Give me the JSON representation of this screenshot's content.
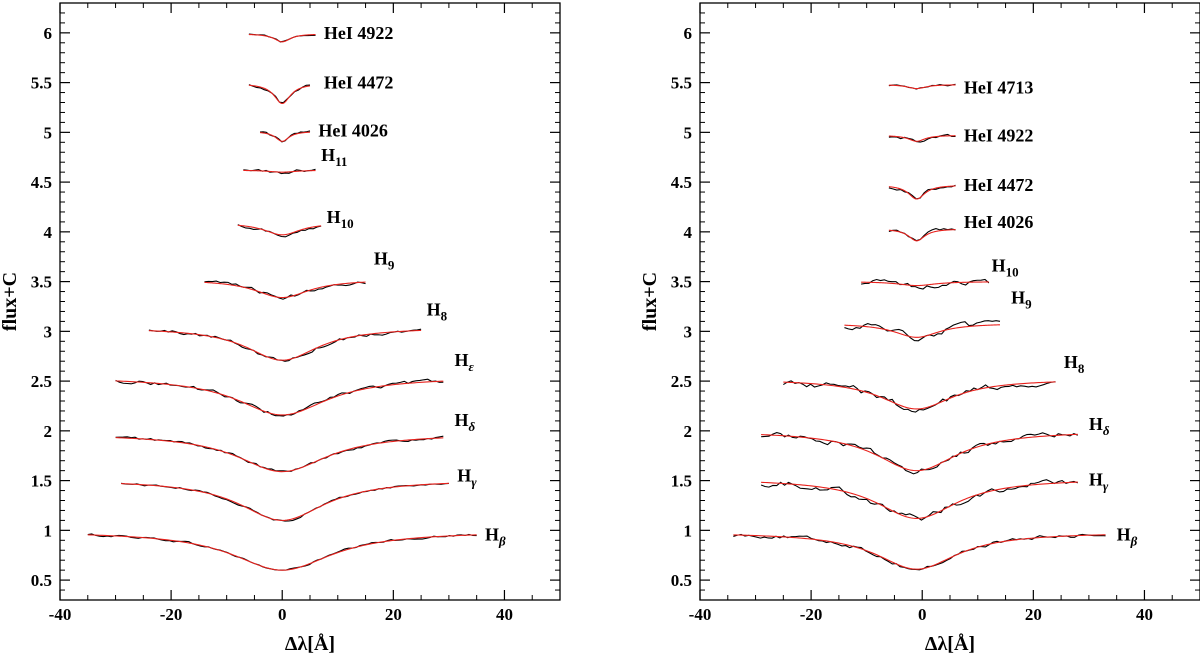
{
  "chart_data": [
    {
      "type": "line",
      "panel": "left",
      "xlabel": "Δλ[Å]",
      "ylabel": "flux+C",
      "xlim": [
        -40,
        50
      ],
      "ylim": [
        0.3,
        6.3
      ],
      "xticks": [
        "-40",
        "-20",
        "0",
        "20",
        "40"
      ],
      "yticks": [
        "0.5",
        "1",
        "1.5",
        "2",
        "2.5",
        "3",
        "3.5",
        "4",
        "4.5",
        "5",
        "5.5",
        "6"
      ],
      "grid": false,
      "series": [
        {
          "name": "Hβ",
          "label": {
            "main": "H",
            "sub": "β"
          },
          "xmin": -35,
          "xmax": 35,
          "cont": 0.99,
          "depth": 0.39,
          "width": 11.0,
          "center": 0.0,
          "noise": 0.012,
          "label_x": 36.5,
          "label_y": 0.96
        },
        {
          "name": "Hγ",
          "label": {
            "main": "H",
            "sub": "γ"
          },
          "xmin": -29,
          "xmax": 30,
          "cont": 1.51,
          "depth": 0.41,
          "width": 9.5,
          "center": 0.0,
          "noise": 0.012,
          "label_x": 31.5,
          "label_y": 1.55
        },
        {
          "name": "Hδ",
          "label": {
            "main": "H",
            "sub": "δ"
          },
          "xmin": -30,
          "xmax": 29,
          "cont": 1.97,
          "depth": 0.38,
          "width": 10.0,
          "center": 0.0,
          "noise": 0.015,
          "label_x": 31,
          "label_y": 2.11
        },
        {
          "name": "Hε",
          "label": {
            "main": "H",
            "sub": "ε"
          },
          "xmin": -30,
          "xmax": 29,
          "cont": 2.54,
          "depth": 0.38,
          "width": 10.0,
          "center": 0.0,
          "noise": 0.02,
          "label_x": 31,
          "label_y": 2.71
        },
        {
          "name": "H8",
          "label": {
            "main": "H",
            "sub": "8"
          },
          "xmin": -24,
          "xmax": 25,
          "cont": 3.04,
          "depth": 0.33,
          "width": 8.0,
          "center": 0.0,
          "noise": 0.02,
          "label_x": 26,
          "label_y": 3.22
        },
        {
          "name": "H9",
          "label": {
            "main": "H",
            "sub": "9"
          },
          "xmin": -14,
          "xmax": 15,
          "cont": 3.52,
          "depth": 0.18,
          "width": 6.0,
          "center": 0.0,
          "noise": 0.02,
          "label_x": 16.5,
          "label_y": 3.73
        },
        {
          "name": "H10",
          "label": {
            "main": "H",
            "sub": "10"
          },
          "xmin": -8,
          "xmax": 7,
          "cont": 4.09,
          "depth": 0.12,
          "width": 4.0,
          "center": 0.0,
          "noise": 0.02,
          "label_x": 8,
          "label_y": 4.15
        },
        {
          "name": "H11",
          "label": {
            "main": "H",
            "sub": "11"
          },
          "xmin": -7,
          "xmax": 6,
          "cont": 4.62,
          "depth": 0.02,
          "width": 3.0,
          "center": 0.0,
          "noise": 0.02,
          "label_x": 7,
          "label_y": 4.77
        },
        {
          "name": "HeI 4026",
          "label": {
            "main": "HeI 4026",
            "sub": ""
          },
          "xmin": -4,
          "xmax": 5,
          "cont": 5.01,
          "depth": 0.1,
          "width": 1.5,
          "center": 0.0,
          "noise": 0.015,
          "label_x": 6.5,
          "label_y": 5.02
        },
        {
          "name": "HeI 4472",
          "label": {
            "main": "HeI 4472",
            "sub": ""
          },
          "xmin": -6,
          "xmax": 5,
          "cont": 5.49,
          "depth": 0.2,
          "width": 1.8,
          "center": 0.0,
          "noise": 0.015,
          "label_x": 7.5,
          "label_y": 5.5
        },
        {
          "name": "HeI 4922",
          "label": {
            "main": "HeI 4922",
            "sub": ""
          },
          "xmin": -6,
          "xmax": 6,
          "cont": 5.99,
          "depth": 0.08,
          "width": 1.8,
          "center": 0.0,
          "noise": 0.01,
          "label_x": 7.5,
          "label_y": 6.0
        }
      ]
    },
    {
      "type": "line",
      "panel": "right",
      "xlabel": "Δλ[Å]",
      "ylabel": "flux+C",
      "xlim": [
        -40,
        50
      ],
      "ylim": [
        0.3,
        6.3
      ],
      "xticks": [
        "-40",
        "-20",
        "0",
        "20",
        "40"
      ],
      "yticks": [
        "0.5",
        "1",
        "1.5",
        "2",
        "2.5",
        "3",
        "3.5",
        "4",
        "4.5",
        "5",
        "5.5",
        "6"
      ],
      "grid": false,
      "series": [
        {
          "name": "Hβ",
          "label": {
            "main": "H",
            "sub": "β"
          },
          "xmin": -34,
          "xmax": 33,
          "cont": 0.98,
          "depth": 0.37,
          "width": 9.0,
          "center": -1.0,
          "noise": 0.02,
          "label_x": 35,
          "label_y": 0.96
        },
        {
          "name": "Hγ",
          "label": {
            "main": "H",
            "sub": "γ"
          },
          "xmin": -29,
          "xmax": 28,
          "cont": 1.52,
          "depth": 0.4,
          "width": 9.0,
          "center": -1.0,
          "noise": 0.035,
          "label_x": 30,
          "label_y": 1.51
        },
        {
          "name": "Hδ",
          "label": {
            "main": "H",
            "sub": "δ"
          },
          "xmin": -29,
          "xmax": 28,
          "cont": 2.0,
          "depth": 0.4,
          "width": 9.0,
          "center": -1.0,
          "noise": 0.03,
          "label_x": 30,
          "label_y": 2.07
        },
        {
          "name": "H8",
          "label": {
            "main": "H",
            "sub": "8"
          },
          "xmin": -25,
          "xmax": 24,
          "cont": 2.52,
          "depth": 0.3,
          "width": 8.0,
          "center": -1.0,
          "noise": 0.035,
          "label_x": 25.5,
          "label_y": 2.69
        },
        {
          "name": "H9",
          "label": {
            "main": "H",
            "sub": "9"
          },
          "xmin": -14,
          "xmax": 14,
          "cont": 3.08,
          "depth": 0.14,
          "width": 5.0,
          "center": -1.0,
          "noise": 0.035,
          "label_x": 16,
          "label_y": 3.34
        },
        {
          "name": "H10",
          "label": {
            "main": "H",
            "sub": "10"
          },
          "xmin": -11,
          "xmax": 12,
          "cont": 3.5,
          "depth": 0.04,
          "width": 4.0,
          "center": -1.0,
          "noise": 0.03,
          "label_x": 12.5,
          "label_y": 3.66
        },
        {
          "name": "HeI 4026",
          "label": {
            "main": "HeI 4026",
            "sub": ""
          },
          "xmin": -6,
          "xmax": 6,
          "cont": 4.03,
          "depth": 0.12,
          "width": 1.8,
          "center": -1.0,
          "noise": 0.02,
          "label_x": 7.5,
          "label_y": 4.1
        },
        {
          "name": "HeI 4472",
          "label": {
            "main": "HeI 4472",
            "sub": ""
          },
          "xmin": -6,
          "xmax": 6,
          "cont": 4.47,
          "depth": 0.14,
          "width": 1.8,
          "center": -1.0,
          "noise": 0.02,
          "label_x": 7.5,
          "label_y": 4.47
        },
        {
          "name": "HeI 4922",
          "label": {
            "main": "HeI 4922",
            "sub": ""
          },
          "xmin": -6,
          "xmax": 6,
          "cont": 4.97,
          "depth": 0.06,
          "width": 1.8,
          "center": -1.0,
          "noise": 0.02,
          "label_x": 7.5,
          "label_y": 4.97
        },
        {
          "name": "HeI 4713",
          "label": {
            "main": "HeI 4713",
            "sub": ""
          },
          "xmin": -6,
          "xmax": 6,
          "cont": 5.48,
          "depth": 0.04,
          "width": 2.0,
          "center": -1.0,
          "noise": 0.01,
          "label_x": 7.5,
          "label_y": 5.45
        }
      ]
    }
  ]
}
